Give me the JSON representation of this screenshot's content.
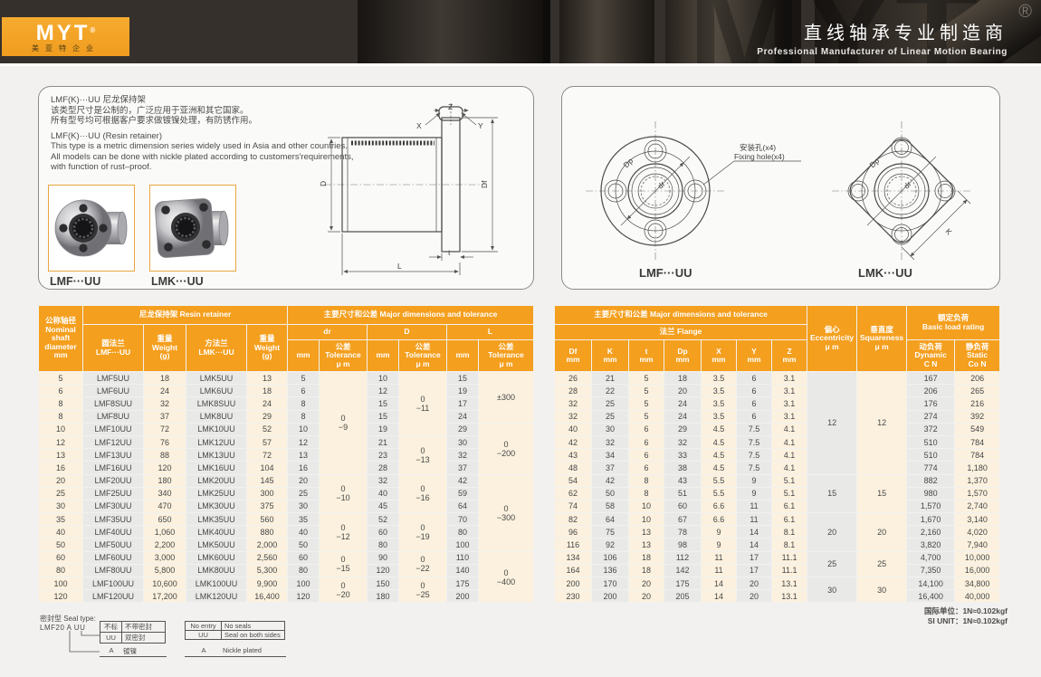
{
  "banner": {
    "brand": "MYT",
    "reg": "®",
    "brand_sub": "美亚特企业",
    "title_cn": "直线轴承专业制造商",
    "title_en": "Professional  Manufacturer  of  Linear  Motion  Bearing",
    "watermark": "MYT"
  },
  "colors": {
    "accent_orange": "#F49F1E",
    "logo_orange": "#F3A52A",
    "row_cream": "#FBF1DE",
    "cell_gray": "#E9E9E8",
    "banner_dark": "#35302C"
  },
  "intro": {
    "cn1": "LMF(K)···UU 尼龙保持架",
    "cn2": "该类型尺寸是公制的，广泛应用于亚洲和其它国家。",
    "cn3": "所有型号均可根据客户要求做镀镍处理，有防锈作用。",
    "en1": "LMF(K)···UU (Resin retainer)",
    "en2": "This type is a metric dimension series widely used in Asia and other countries.",
    "en3": "All models can be done with nickle plated according to customers'requirements,",
    "en4": "with function of rust–proof.",
    "product_lmf_label": "LMF···UU",
    "product_lmk_label": "LMK···UU"
  },
  "drawings": {
    "lmf_label": "LMF···UU",
    "lmk_label": "LMK···UU",
    "fixing_hole_cn": "安装孔(x4)",
    "fixing_hole_en": "Fixing hole(x4)",
    "dim_D": "D",
    "dim_Df": "Df",
    "dim_L": "L",
    "dim_t": "t",
    "dim_X": "X",
    "dim_Y": "Y",
    "dim_Z": "Z",
    "dim_Dp": "Dp",
    "dim_dr": "dr",
    "dim_K": "K"
  },
  "left_table": {
    "header": {
      "nominal": "公称轴径\nNominal\nshaft\ndiameter\nmm",
      "resin_group": "尼龙保持架  Resin retainer",
      "dims_group": "主要尺寸和公差  Major dimensions and tolerance",
      "col_lmf": "圆法兰\nLMF···UU",
      "col_weight1": "重量\nWeight\n(g)",
      "col_lmk": "方法兰\nLMK···UU",
      "col_weight2": "重量\nWeight\n(g)",
      "col_dr": "dr",
      "col_D": "D",
      "col_L": "L",
      "mm": "mm",
      "tol": "公差\nTolerance\nμ m"
    },
    "rows": [
      [
        "5",
        "LMF5UU",
        "18",
        "LMK5UU",
        "13",
        "5",
        "10",
        "15"
      ],
      [
        "6",
        "LMF6UU",
        "24",
        "LMK6UU",
        "18",
        "6",
        "12",
        "19"
      ],
      [
        "8",
        "LMF8SUU",
        "32",
        "LMK8SUU",
        "24",
        "8",
        "15",
        "17"
      ],
      [
        "8",
        "LMF8UU",
        "37",
        "LMK8UU",
        "29",
        "8",
        "15",
        "24"
      ],
      [
        "10",
        "LMF10UU",
        "72",
        "LMK10UU",
        "52",
        "10",
        "19",
        "29"
      ],
      [
        "12",
        "LMF12UU",
        "76",
        "LMK12UU",
        "57",
        "12",
        "21",
        "30"
      ],
      [
        "13",
        "LMF13UU",
        "88",
        "LMK13UU",
        "72",
        "13",
        "23",
        "32"
      ],
      [
        "16",
        "LMF16UU",
        "120",
        "LMK16UU",
        "104",
        "16",
        "28",
        "37"
      ],
      [
        "20",
        "LMF20UU",
        "180",
        "LMK20UU",
        "145",
        "20",
        "32",
        "42"
      ],
      [
        "25",
        "LMF25UU",
        "340",
        "LMK25UU",
        "300",
        "25",
        "40",
        "59"
      ],
      [
        "30",
        "LMF30UU",
        "470",
        "LMK30UU",
        "375",
        "30",
        "45",
        "64"
      ],
      [
        "35",
        "LMF35UU",
        "650",
        "LMK35UU",
        "560",
        "35",
        "52",
        "70"
      ],
      [
        "40",
        "LMF40UU",
        "1,060",
        "LMK40UU",
        "880",
        "40",
        "60",
        "80"
      ],
      [
        "50",
        "LMF50UU",
        "2,200",
        "LMK50UU",
        "2,000",
        "50",
        "80",
        "100"
      ],
      [
        "60",
        "LMF60UU",
        "3,000",
        "LMK60UU",
        "2,560",
        "60",
        "90",
        "110"
      ],
      [
        "80",
        "LMF80UU",
        "5,800",
        "LMK80UU",
        "5,300",
        "80",
        "120",
        "140"
      ],
      [
        "100",
        "LMF100UU",
        "10,600",
        "LMK100UU",
        "9,900",
        "100",
        "150",
        "175"
      ],
      [
        "120",
        "LMF120UU",
        "17,200",
        "LMK120UU",
        "16,400",
        "120",
        "180",
        "200"
      ]
    ],
    "dr_tolerance_groups": [
      {
        "rows": 8,
        "text": "0\n−9"
      },
      {
        "rows": 3,
        "text": "0\n−10"
      },
      {
        "rows": 3,
        "text": "0\n−12"
      },
      {
        "rows": 2,
        "text": "0\n−15"
      },
      {
        "rows": 2,
        "text": "0\n−20"
      }
    ],
    "D_tolerance_groups": [
      {
        "rows": 5,
        "text": "0\n−11"
      },
      {
        "rows": 3,
        "text": "0\n−13"
      },
      {
        "rows": 3,
        "text": "0\n−16"
      },
      {
        "rows": 3,
        "text": "0\n−19"
      },
      {
        "rows": 2,
        "text": "0\n−22"
      },
      {
        "rows": 2,
        "text": "0\n−25"
      }
    ],
    "L_tolerance_groups": [
      {
        "rows": 4,
        "text": "±300"
      },
      {
        "rows": 4,
        "text": "0\n−200"
      },
      {
        "rows": 6,
        "text": "0\n−300"
      },
      {
        "rows": 4,
        "text": "0\n−400"
      }
    ]
  },
  "right_table": {
    "header": {
      "dims_group": "主要尺寸和公差  Major dimensions and tolerance",
      "flange_group": "法兰  Flange",
      "col_Df": "Df\nmm",
      "col_K": "K\nmm",
      "col_t": "t\nmm",
      "col_Dp": "Dp\nmm",
      "col_X": "X\nmm",
      "col_Y": "Y\nmm",
      "col_Z": "Z\nmm",
      "ecc": "偏心\nEccentricity\nμ m",
      "sq": "垂直度\nSquareness\nμ m",
      "load_group": "额定负荷\nBasic load rating",
      "dyn": "动负荷\nDynamic\nC N",
      "stat": "静负荷\nStatic\nCo N"
    },
    "rows": [
      [
        "26",
        "21",
        "5",
        "18",
        "3.5",
        "6",
        "3.1",
        "167",
        "206"
      ],
      [
        "28",
        "22",
        "5",
        "20",
        "3.5",
        "6",
        "3.1",
        "206",
        "265"
      ],
      [
        "32",
        "25",
        "5",
        "24",
        "3.5",
        "6",
        "3.1",
        "176",
        "216"
      ],
      [
        "32",
        "25",
        "5",
        "24",
        "3.5",
        "6",
        "3.1",
        "274",
        "392"
      ],
      [
        "40",
        "30",
        "6",
        "29",
        "4.5",
        "7.5",
        "4.1",
        "372",
        "549"
      ],
      [
        "42",
        "32",
        "6",
        "32",
        "4.5",
        "7.5",
        "4.1",
        "510",
        "784"
      ],
      [
        "43",
        "34",
        "6",
        "33",
        "4.5",
        "7.5",
        "4.1",
        "510",
        "784"
      ],
      [
        "48",
        "37",
        "6",
        "38",
        "4.5",
        "7.5",
        "4.1",
        "774",
        "1,180"
      ],
      [
        "54",
        "42",
        "8",
        "43",
        "5.5",
        "9",
        "5.1",
        "882",
        "1,370"
      ],
      [
        "62",
        "50",
        "8",
        "51",
        "5.5",
        "9",
        "5.1",
        "980",
        "1,570"
      ],
      [
        "74",
        "58",
        "10",
        "60",
        "6.6",
        "11",
        "6.1",
        "1,570",
        "2,740"
      ],
      [
        "82",
        "64",
        "10",
        "67",
        "6.6",
        "11",
        "6.1",
        "1,670",
        "3,140"
      ],
      [
        "96",
        "75",
        "13",
        "78",
        "9",
        "14",
        "8.1",
        "2,160",
        "4,020"
      ],
      [
        "116",
        "92",
        "13",
        "98",
        "9",
        "14",
        "8.1",
        "3,820",
        "7,940"
      ],
      [
        "134",
        "106",
        "18",
        "112",
        "11",
        "17",
        "11.1",
        "4,700",
        "10,000"
      ],
      [
        "164",
        "136",
        "18",
        "142",
        "11",
        "17",
        "11.1",
        "7,350",
        "16,000"
      ],
      [
        "200",
        "170",
        "20",
        "175",
        "14",
        "20",
        "13.1",
        "14,100",
        "34,800"
      ],
      [
        "230",
        "200",
        "20",
        "205",
        "14",
        "20",
        "13.1",
        "16,400",
        "40,000"
      ]
    ],
    "eccentricity_groups": [
      {
        "rows": 8,
        "text": "12"
      },
      {
        "rows": 3,
        "text": "15"
      },
      {
        "rows": 3,
        "text": "20"
      },
      {
        "rows": 2,
        "text": "25"
      },
      {
        "rows": 2,
        "text": "30"
      }
    ],
    "squareness_groups": [
      {
        "rows": 8,
        "text": "12"
      },
      {
        "rows": 3,
        "text": "15"
      },
      {
        "rows": 3,
        "text": "20"
      },
      {
        "rows": 2,
        "text": "25"
      },
      {
        "rows": 2,
        "text": "30"
      }
    ]
  },
  "seal_legend": {
    "title": "密封型 Seal type:",
    "example": "LMF20 A UU",
    "cn_rows": [
      [
        "不标",
        "不带密封"
      ],
      [
        "UU",
        "双密封"
      ]
    ],
    "en_rows": [
      [
        "No entry",
        "No seals"
      ],
      [
        "UU",
        "Seal on both sides"
      ]
    ],
    "plated_cn_key": "A",
    "plated_cn_val": "镀镍",
    "plated_en_key": "A",
    "plated_en_val": "Nickle plated"
  },
  "unit_note": {
    "cn": "国际单位：1N≈0.102kgf",
    "en": "SI UNIT：1N≈0.102kgf"
  }
}
